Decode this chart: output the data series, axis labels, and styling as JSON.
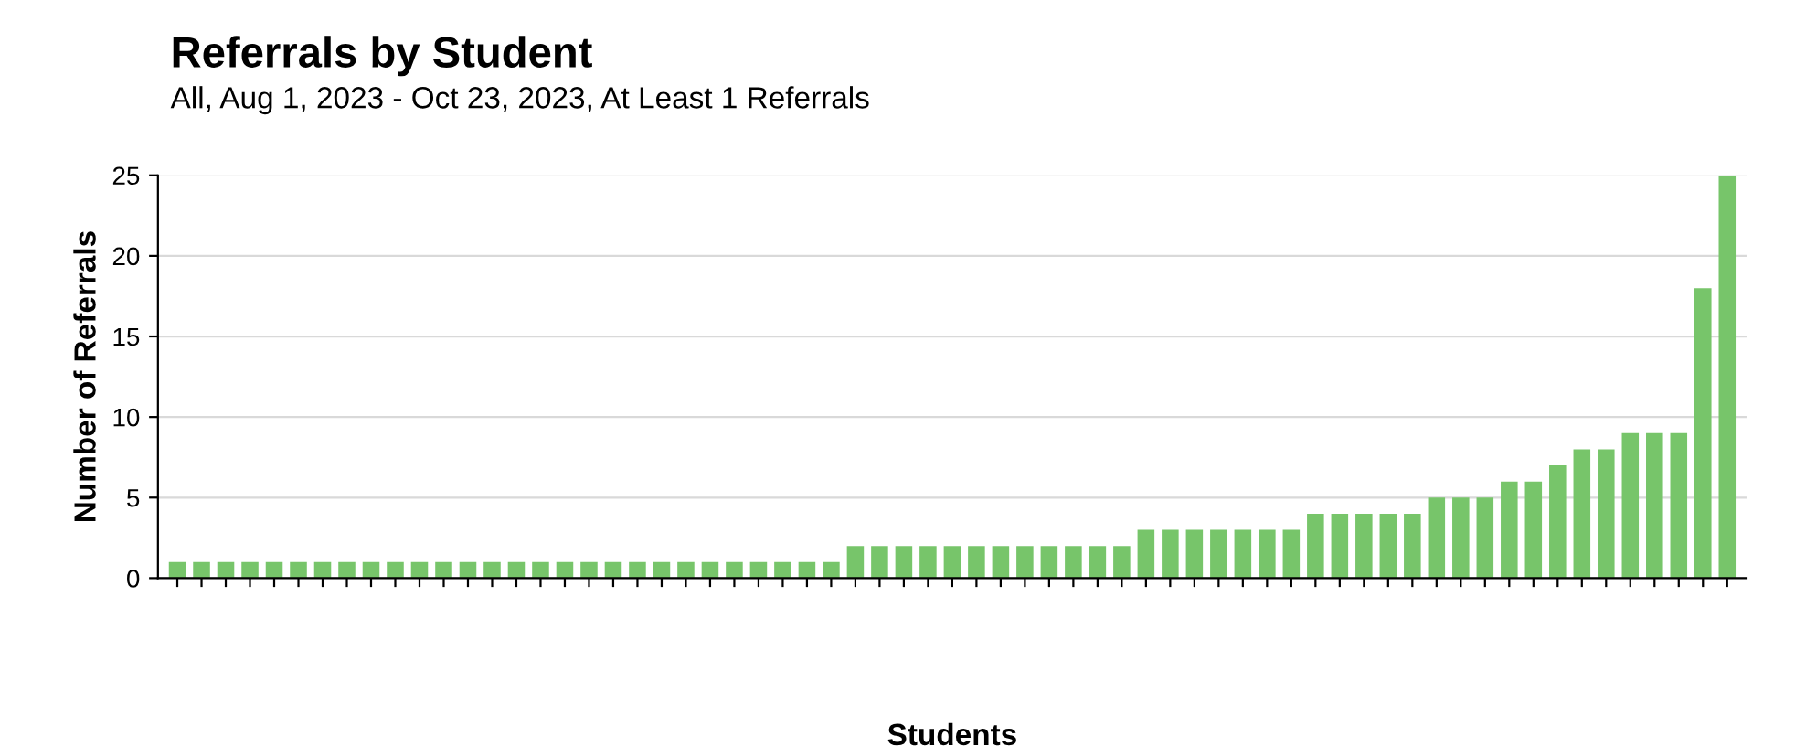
{
  "chart_data": {
    "type": "bar",
    "title": "Referrals by Student",
    "subtitle": "All, Aug 1, 2023 - Oct 23, 2023, At Least 1 Referrals",
    "xlabel": "Students",
    "ylabel": "Number of Referrals",
    "categories": [
      null,
      null,
      null,
      null,
      null,
      null,
      null,
      null,
      null,
      null,
      null,
      null,
      null,
      null,
      null,
      null,
      null,
      null,
      null,
      null,
      null,
      null,
      null,
      null,
      null,
      null,
      null,
      null,
      null,
      null,
      null,
      null,
      null,
      null,
      null,
      null,
      null,
      null,
      null,
      null,
      null,
      null,
      null,
      null,
      null,
      null,
      null,
      null,
      null,
      null,
      null,
      null,
      null,
      null,
      null,
      null,
      null,
      null,
      null,
      null,
      null,
      null,
      null,
      null,
      null
    ],
    "values": [
      1,
      1,
      1,
      1,
      1,
      1,
      1,
      1,
      1,
      1,
      1,
      1,
      1,
      1,
      1,
      1,
      1,
      1,
      1,
      1,
      1,
      1,
      1,
      1,
      1,
      1,
      1,
      1,
      2,
      2,
      2,
      2,
      2,
      2,
      2,
      2,
      2,
      2,
      2,
      2,
      3,
      3,
      3,
      3,
      3,
      3,
      3,
      4,
      4,
      4,
      4,
      4,
      5,
      5,
      5,
      6,
      6,
      7,
      8,
      8,
      9,
      9,
      9,
      18,
      25
    ],
    "color": "#77c56a",
    "ylim": [
      0,
      25
    ],
    "yticks": [
      0,
      5,
      10,
      15,
      20,
      25
    ],
    "grid": "y"
  }
}
